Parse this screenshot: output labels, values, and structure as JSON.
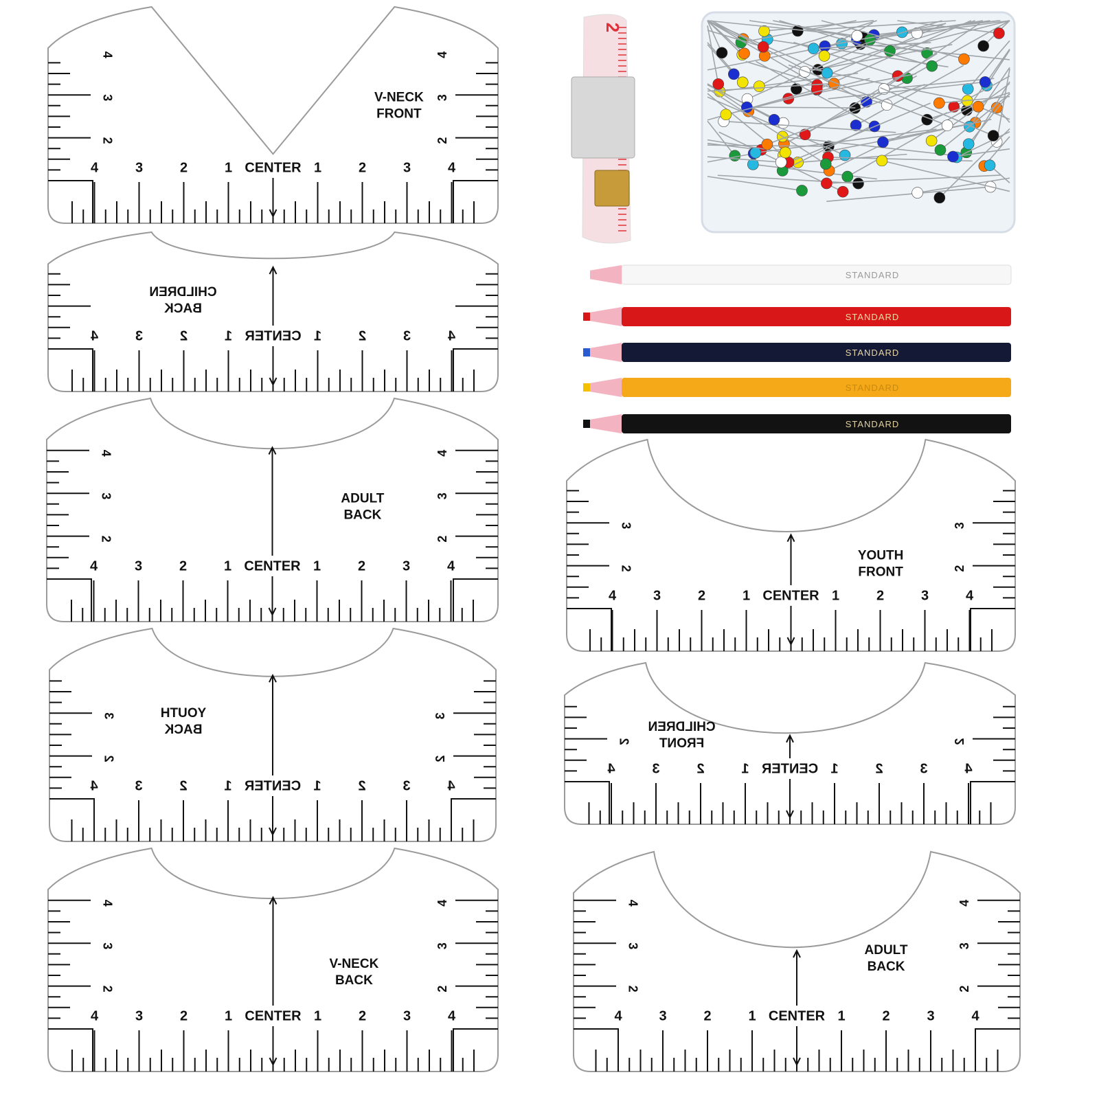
{
  "colors": {
    "outline": "#9a9a9a",
    "ink": "#111111",
    "tape": "#f6dfe3",
    "tape_red": "#e0303a",
    "clip": "#d8d8d8",
    "brass": "#c89b3a",
    "box": "#eef3f8"
  },
  "scale_labels": [
    "4",
    "3",
    "2",
    "1",
    "1",
    "2",
    "3",
    "4"
  ],
  "center_label": "CENTER",
  "rulers": [
    {
      "id": "v-neck-front",
      "title": [
        "V-NECK",
        "FRONT"
      ],
      "neck": "v",
      "mirrored": false,
      "side_labels": [
        "2",
        "3",
        "4"
      ]
    },
    {
      "id": "children-back",
      "title": [
        "CHILDREN",
        "BACK"
      ],
      "neck": "shallow",
      "mirrored": true,
      "side_labels": []
    },
    {
      "id": "adult-back",
      "title": [
        "ADULT",
        "BACK"
      ],
      "neck": "curve",
      "mirrored": false,
      "side_labels": [
        "2",
        "3",
        "4"
      ]
    },
    {
      "id": "youth-back",
      "title": [
        "YOUTH",
        "BACK"
      ],
      "neck": "curve",
      "mirrored": true,
      "side_labels": [
        "2",
        "3"
      ]
    },
    {
      "id": "v-neck-back",
      "title": [
        "V-NECK",
        "BACK"
      ],
      "neck": "curve",
      "mirrored": false,
      "side_labels": [
        "2",
        "3",
        "4"
      ]
    },
    {
      "id": "youth-front",
      "title": [
        "YOUTH",
        "FRONT"
      ],
      "neck": "deep",
      "mirrored": false,
      "side_labels": [
        "2",
        "3"
      ]
    },
    {
      "id": "children-front",
      "title": [
        "CHILDREN",
        "FRONT"
      ],
      "neck": "deep",
      "mirrored": true,
      "side_labels": [
        "2"
      ]
    },
    {
      "id": "adult-back-2",
      "title": [
        "ADULT",
        "BACK"
      ],
      "neck": "deep",
      "mirrored": false,
      "side_labels": [
        "2",
        "3",
        "4"
      ]
    }
  ],
  "tape_measure": {
    "numbers": [
      "2"
    ]
  },
  "pins": {
    "head_colors": [
      "#1b2fd1",
      "#111111",
      "#f2e300",
      "#ff7a00",
      "#25b8e0",
      "#e01818",
      "#1a9a3a",
      "#ffffff"
    ]
  },
  "pencils": [
    {
      "label": "STANDARD",
      "body": "#f7f7f7",
      "core": "#ffffff",
      "text": "#999999"
    },
    {
      "label": "STANDARD",
      "body": "#d81818",
      "core": "#d81818",
      "text": "#f3d9a0"
    },
    {
      "label": "STANDARD",
      "body": "#141a35",
      "core": "#2a5bd0",
      "text": "#e8d6a8"
    },
    {
      "label": "STANDARD",
      "body": "#f5a818",
      "core": "#f5c000",
      "text": "#c98a10"
    },
    {
      "label": "STANDARD",
      "body": "#121212",
      "core": "#111111",
      "text": "#e0cfa0"
    }
  ]
}
